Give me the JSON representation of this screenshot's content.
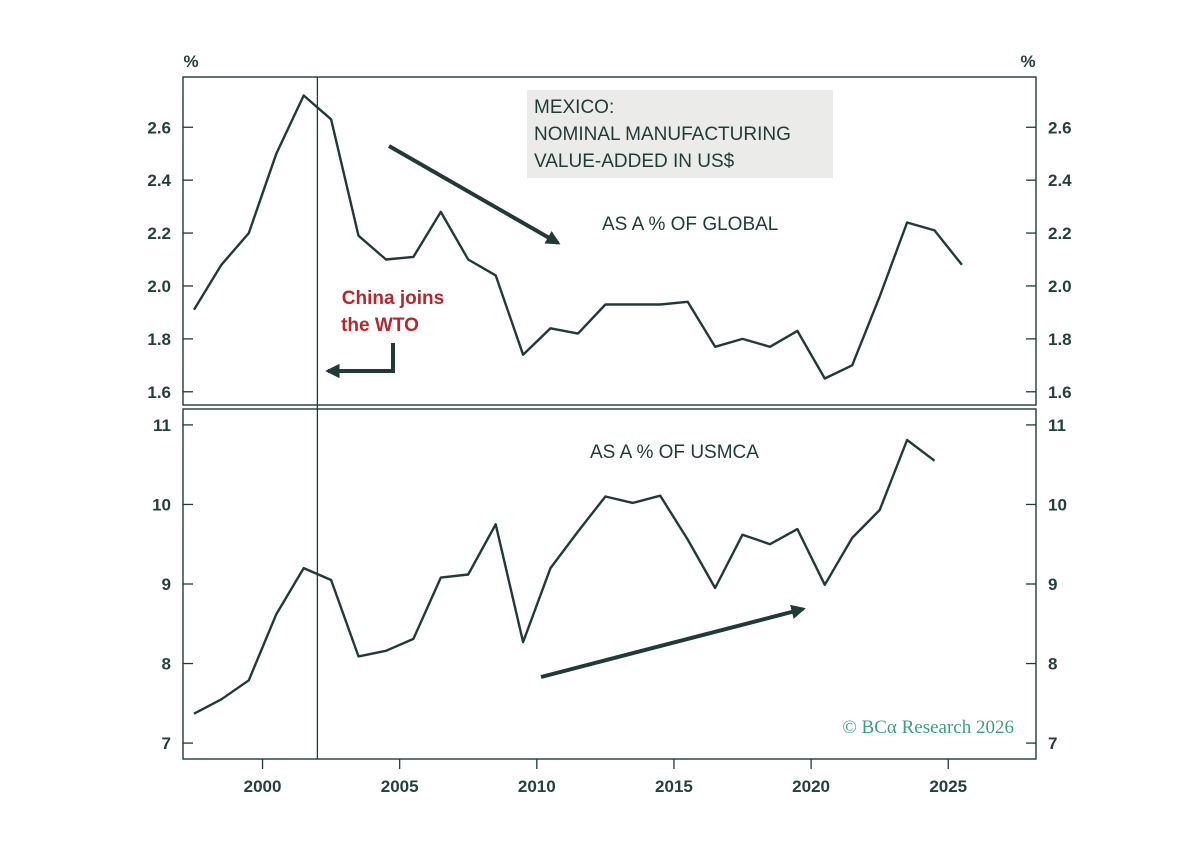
{
  "chart_data": {
    "type": "line",
    "title_lines": [
      "MEXICO:",
      "NOMINAL MANUFACTURING",
      "VALUE-ADDED IN US$"
    ],
    "x_ticks": [
      2000,
      2005,
      2010,
      2015,
      2020,
      2025
    ],
    "xlim": [
      1997.1,
      2028.2
    ],
    "vline_x": 2002.0,
    "credit": "© BCα Research 2026",
    "colors": {
      "line": "#1f3a37",
      "annotation": "#b5272d",
      "credit": "#3aa17e",
      "title_box": "#ebece9"
    },
    "panels": [
      {
        "label": "AS A % OF GLOBAL",
        "y_unit_left": "%",
        "y_unit_right": "%",
        "ylim": [
          1.55,
          2.79
        ],
        "y_ticks": [
          1.6,
          1.8,
          2.0,
          2.2,
          2.4,
          2.6
        ],
        "y_tick_labels": [
          "1.6",
          "1.8",
          "2.0",
          "2.2",
          "2.4",
          "2.6"
        ],
        "annotation": [
          "China joins",
          "the WTO"
        ],
        "series": [
          {
            "x": [
              1997.5,
              1998.5,
              1999.5,
              2000.5,
              2001.5,
              2002.5,
              2003.5,
              2004.5,
              2005.5,
              2006.5,
              2007.5,
              2008.5,
              2009.5,
              2010.5,
              2011.5,
              2012.5,
              2013.5,
              2014.5,
              2015.5,
              2016.5,
              2017.5,
              2018.5,
              2019.5,
              2020.5,
              2021.5,
              2022.5,
              2023.5,
              2024.5,
              2025.5
            ],
            "values": [
              1.91,
              2.08,
              2.2,
              2.5,
              2.72,
              2.63,
              2.19,
              2.1,
              2.11,
              2.28,
              2.1,
              2.04,
              1.74,
              1.84,
              1.82,
              1.93,
              1.93,
              1.93,
              1.94,
              1.77,
              1.8,
              1.77,
              1.83,
              1.65,
              1.7,
              1.96,
              2.24,
              2.21,
              2.08
            ]
          }
        ]
      },
      {
        "label": "AS A % OF USMCA",
        "ylim": [
          6.8,
          11.2
        ],
        "y_ticks": [
          7,
          8,
          9,
          10,
          11
        ],
        "y_tick_labels": [
          "7",
          "8",
          "9",
          "10",
          "11"
        ],
        "series": [
          {
            "x": [
              1997.5,
              1998.5,
              1999.5,
              2000.5,
              2001.5,
              2002.5,
              2003.5,
              2004.5,
              2005.5,
              2006.5,
              2007.5,
              2008.5,
              2009.5,
              2010.5,
              2011.5,
              2012.5,
              2013.5,
              2014.5,
              2015.5,
              2016.5,
              2017.5,
              2018.5,
              2019.5,
              2020.5,
              2021.5,
              2022.5,
              2023.5,
              2024.5
            ],
            "values": [
              7.37,
              7.55,
              7.79,
              8.62,
              9.2,
              9.05,
              8.09,
              8.16,
              8.31,
              9.08,
              9.12,
              9.75,
              8.27,
              9.2,
              9.66,
              10.1,
              10.02,
              10.11,
              9.56,
              8.95,
              9.62,
              9.5,
              9.69,
              8.99,
              9.58,
              9.93,
              10.81,
              10.55
            ]
          }
        ]
      }
    ]
  }
}
